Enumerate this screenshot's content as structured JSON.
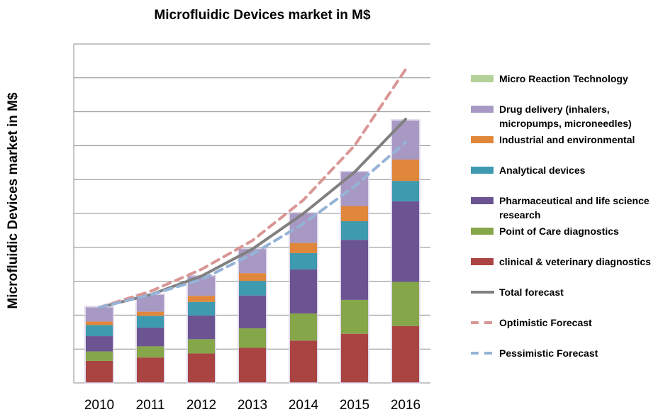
{
  "chart_data": {
    "type": "bar",
    "stacked": true,
    "title": "Microfluidic Devices market in M$",
    "xlabel": "",
    "ylabel": "Microfluidic Devices market in M$",
    "categories": [
      "2010",
      "2011",
      "2012",
      "2013",
      "2014",
      "2015",
      "2016"
    ],
    "ylim": [
      0,
      10
    ],
    "grid": true,
    "y_tick_labels_shown": false,
    "legend_position": "right",
    "series": [
      {
        "name": "clinical & veterinary diagnostics",
        "color": "#A94442",
        "values": [
          0.65,
          0.75,
          0.87,
          1.04,
          1.25,
          1.45,
          1.68
        ]
      },
      {
        "name": "Point of Care diagnostics",
        "color": "#86A64A",
        "values": [
          0.28,
          0.33,
          0.42,
          0.57,
          0.8,
          1.0,
          1.3
        ]
      },
      {
        "name": "Pharmaceutical and life science research",
        "color": "#6C5492",
        "values": [
          0.45,
          0.55,
          0.7,
          0.97,
          1.3,
          1.77,
          2.38
        ]
      },
      {
        "name": "Analytical devices",
        "color": "#3E9AAE",
        "values": [
          0.33,
          0.35,
          0.4,
          0.43,
          0.48,
          0.55,
          0.6
        ]
      },
      {
        "name": "Industrial and environmental",
        "color": "#E0873B",
        "values": [
          0.1,
          0.12,
          0.18,
          0.23,
          0.3,
          0.45,
          0.63
        ]
      },
      {
        "name": "Drug delivery  (inhalers, micropumps, microneedles)",
        "color": "#A899C4",
        "values": [
          0.42,
          0.5,
          0.58,
          0.71,
          0.87,
          1.0,
          1.15
        ]
      },
      {
        "name": "Micro Reaction Technology",
        "color": "#B5D19A",
        "values": [
          0,
          0,
          0,
          0,
          0,
          0,
          0
        ]
      }
    ],
    "lines": [
      {
        "name": "Total forecast",
        "color": "#808080",
        "dashed": false,
        "values": [
          2.23,
          2.6,
          3.15,
          3.95,
          5.0,
          6.22,
          7.78
        ]
      },
      {
        "name": "Optimistic Forecast",
        "color": "#D99694",
        "dashed": true,
        "values": [
          2.23,
          2.7,
          3.35,
          4.2,
          5.4,
          7.0,
          9.25
        ]
      },
      {
        "name": "Pessimistic Forecast",
        "color": "#95B3D7",
        "dashed": true,
        "values": [
          2.23,
          2.6,
          3.05,
          3.8,
          4.7,
          5.8,
          7.1
        ]
      }
    ],
    "legend": {
      "items": [
        {
          "kind": "swatch",
          "color": "#B5D19A",
          "lines": [
            "Micro Reaction Technology"
          ]
        },
        {
          "kind": "swatch",
          "color": "#A899C4",
          "lines": [
            "Drug delivery  (inhalers,",
            "micropumps, microneedles)"
          ]
        },
        {
          "kind": "swatch",
          "color": "#E0873B",
          "lines": [
            "Industrial and environmental"
          ]
        },
        {
          "kind": "swatch",
          "color": "#3E9AAE",
          "lines": [
            "Analytical devices"
          ]
        },
        {
          "kind": "swatch",
          "color": "#6C5492",
          "lines": [
            "Pharmaceutical and life science",
            "research"
          ]
        },
        {
          "kind": "swatch",
          "color": "#86A64A",
          "lines": [
            "Point of Care diagnostics"
          ]
        },
        {
          "kind": "swatch",
          "color": "#A94442",
          "lines": [
            "clinical & veterinary diagnostics"
          ]
        },
        {
          "kind": "line",
          "color": "#808080",
          "dashed": false,
          "lines": [
            "Total forecast"
          ]
        },
        {
          "kind": "line",
          "color": "#D99694",
          "dashed": true,
          "lines": [
            "Optimistic Forecast"
          ]
        },
        {
          "kind": "line",
          "color": "#95B3D7",
          "dashed": true,
          "lines": [
            "Pessimistic Forecast"
          ]
        }
      ]
    }
  }
}
